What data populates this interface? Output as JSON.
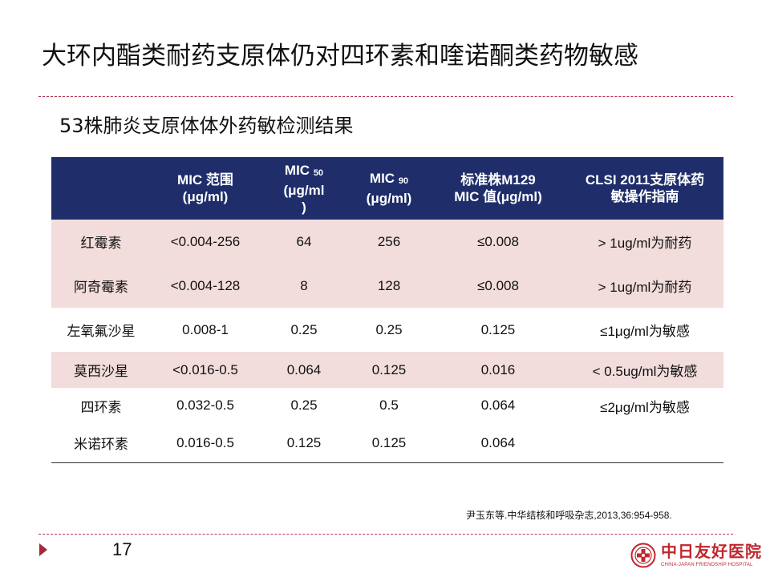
{
  "slide": {
    "title": "大环内酯类耐药支原体仍对四环素和喹诺酮类药物敏感",
    "subtitle": "53株肺炎支原体体外药敏检测结果",
    "citation": "尹玉东等.中华结核和呼吸杂志,2013,36:954-958.",
    "page_number": "17"
  },
  "table": {
    "headers": {
      "range_line1": "MIC 范围",
      "range_line2": "(μg/ml)",
      "mic50_prefix": "MIC ",
      "mic50_sub": "50",
      "mic50_line2": "(μg/ml",
      "mic50_line3": ")",
      "mic90_prefix": "MIC ",
      "mic90_sub": "90",
      "mic90_line2": "(μg/ml)",
      "m129_line1": "标准株M129",
      "m129_line2": "MIC 值(μg/ml)",
      "clsi_line1": "CLSI 2011支原体药",
      "clsi_line2": "敏操作指南"
    },
    "rows": [
      {
        "drug": "红霉素",
        "range": "<0.004-256",
        "mic50": "64",
        "mic90": "256",
        "m129": "≤0.008",
        "clsi": "> 1ug/ml为耐药"
      },
      {
        "drug": "阿奇霉素",
        "range": "<0.004-128",
        "mic50": "8",
        "mic90": "128",
        "m129": "≤0.008",
        "clsi": "> 1ug/ml为耐药"
      },
      {
        "drug": "左氧氟沙星",
        "range": "0.008-1",
        "mic50": "0.25",
        "mic90": "0.25",
        "m129": "0.125",
        "clsi": "≤1μg/ml为敏感"
      },
      {
        "drug": "莫西沙星",
        "range": "<0.016-0.5",
        "mic50": "0.064",
        "mic90": "0.125",
        "m129": "0.016",
        "clsi": "< 0.5ug/ml为敏感"
      },
      {
        "drug": "四环素",
        "range": "0.032-0.5",
        "mic50": "0.25",
        "mic90": "0.5",
        "m129": "0.064",
        "clsi": "≤2μg/ml为敏感"
      },
      {
        "drug": "米诺环素",
        "range": "0.016-0.5",
        "mic50": "0.125",
        "mic90": "0.125",
        "m129": "0.064",
        "clsi": ""
      }
    ]
  },
  "logo": {
    "name": "中日友好医院",
    "english": "CHINA-JAPAN FRIENDSHIP HOSPITAL"
  },
  "colors": {
    "header_bg": "#1f2e6b",
    "row_pink": "#f2dcdc",
    "accent": "#b0344f",
    "logo_red": "#c0272d"
  }
}
